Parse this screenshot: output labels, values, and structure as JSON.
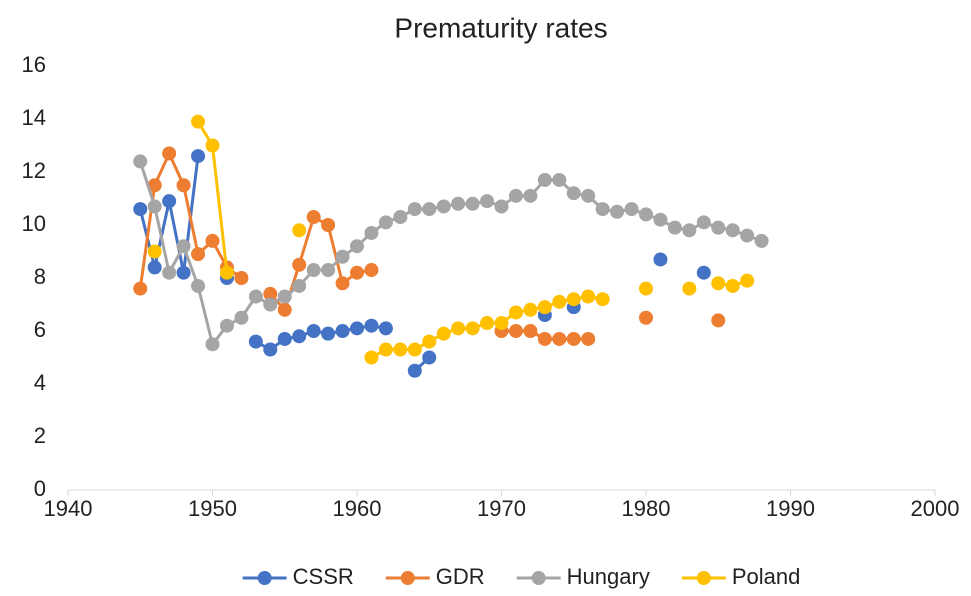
{
  "chart_data": {
    "type": "line",
    "title": "Prematurity rates",
    "x": [
      1945,
      1946,
      1947,
      1948,
      1949,
      1950,
      1951,
      1952,
      1953,
      1954,
      1955,
      1956,
      1957,
      1958,
      1959,
      1960,
      1961,
      1962,
      1963,
      1964,
      1965,
      1966,
      1967,
      1968,
      1969,
      1970,
      1971,
      1972,
      1973,
      1974,
      1975,
      1976,
      1977,
      1978,
      1979,
      1980,
      1981,
      1982,
      1983,
      1984,
      1985,
      1986,
      1987,
      1988
    ],
    "series": [
      {
        "name": "CSSR",
        "color": "#4472c4",
        "values": [
          10.6,
          8.4,
          10.9,
          8.2,
          12.6,
          null,
          8.0,
          null,
          5.6,
          5.3,
          5.7,
          5.8,
          6.0,
          5.9,
          6.0,
          6.1,
          6.2,
          6.1,
          null,
          4.5,
          5.0,
          null,
          null,
          null,
          null,
          null,
          null,
          null,
          6.6,
          null,
          6.9,
          null,
          null,
          null,
          null,
          null,
          8.7,
          null,
          null,
          8.2,
          null,
          null,
          null,
          null
        ]
      },
      {
        "name": "GDR",
        "color": "#ed7d31",
        "values": [
          7.6,
          11.5,
          12.7,
          11.5,
          8.9,
          9.4,
          8.4,
          8.0,
          null,
          7.4,
          6.8,
          8.5,
          10.3,
          10.0,
          7.8,
          8.2,
          8.3,
          null,
          null,
          null,
          null,
          null,
          null,
          null,
          null,
          6.0,
          6.0,
          6.0,
          5.7,
          5.7,
          5.7,
          5.7,
          null,
          null,
          null,
          6.5,
          null,
          null,
          null,
          null,
          6.4,
          null,
          null,
          null
        ]
      },
      {
        "name": "Hungary",
        "color": "#a5a5a5",
        "values": [
          12.4,
          10.7,
          8.2,
          9.2,
          7.7,
          5.5,
          6.2,
          6.5,
          7.3,
          7.0,
          7.3,
          7.7,
          8.3,
          8.3,
          8.8,
          9.2,
          9.7,
          10.1,
          10.3,
          10.6,
          10.6,
          10.7,
          10.8,
          10.8,
          10.9,
          10.7,
          11.1,
          11.1,
          11.7,
          11.7,
          11.2,
          11.1,
          10.6,
          10.5,
          10.6,
          10.4,
          10.2,
          9.9,
          9.8,
          10.1,
          9.9,
          9.8,
          9.6,
          9.4
        ]
      },
      {
        "name": "Poland",
        "color": "#ffc000",
        "values": [
          null,
          9.0,
          null,
          null,
          13.9,
          13.0,
          8.2,
          null,
          null,
          null,
          null,
          9.8,
          null,
          null,
          null,
          null,
          5.0,
          5.3,
          5.3,
          5.3,
          5.6,
          5.9,
          6.1,
          6.1,
          6.3,
          6.3,
          6.7,
          6.8,
          6.9,
          7.1,
          7.2,
          7.3,
          7.2,
          null,
          null,
          7.6,
          null,
          null,
          7.6,
          null,
          7.8,
          7.7,
          7.9,
          null
        ]
      }
    ],
    "xlim": [
      1940,
      2000
    ],
    "xticks": [
      1940,
      1950,
      1960,
      1970,
      1980,
      1990,
      2000
    ],
    "ylim": [
      0,
      16
    ],
    "yticks": [
      0,
      2,
      4,
      6,
      8,
      10,
      12,
      14,
      16
    ],
    "grid": false,
    "legend": "bottom"
  }
}
